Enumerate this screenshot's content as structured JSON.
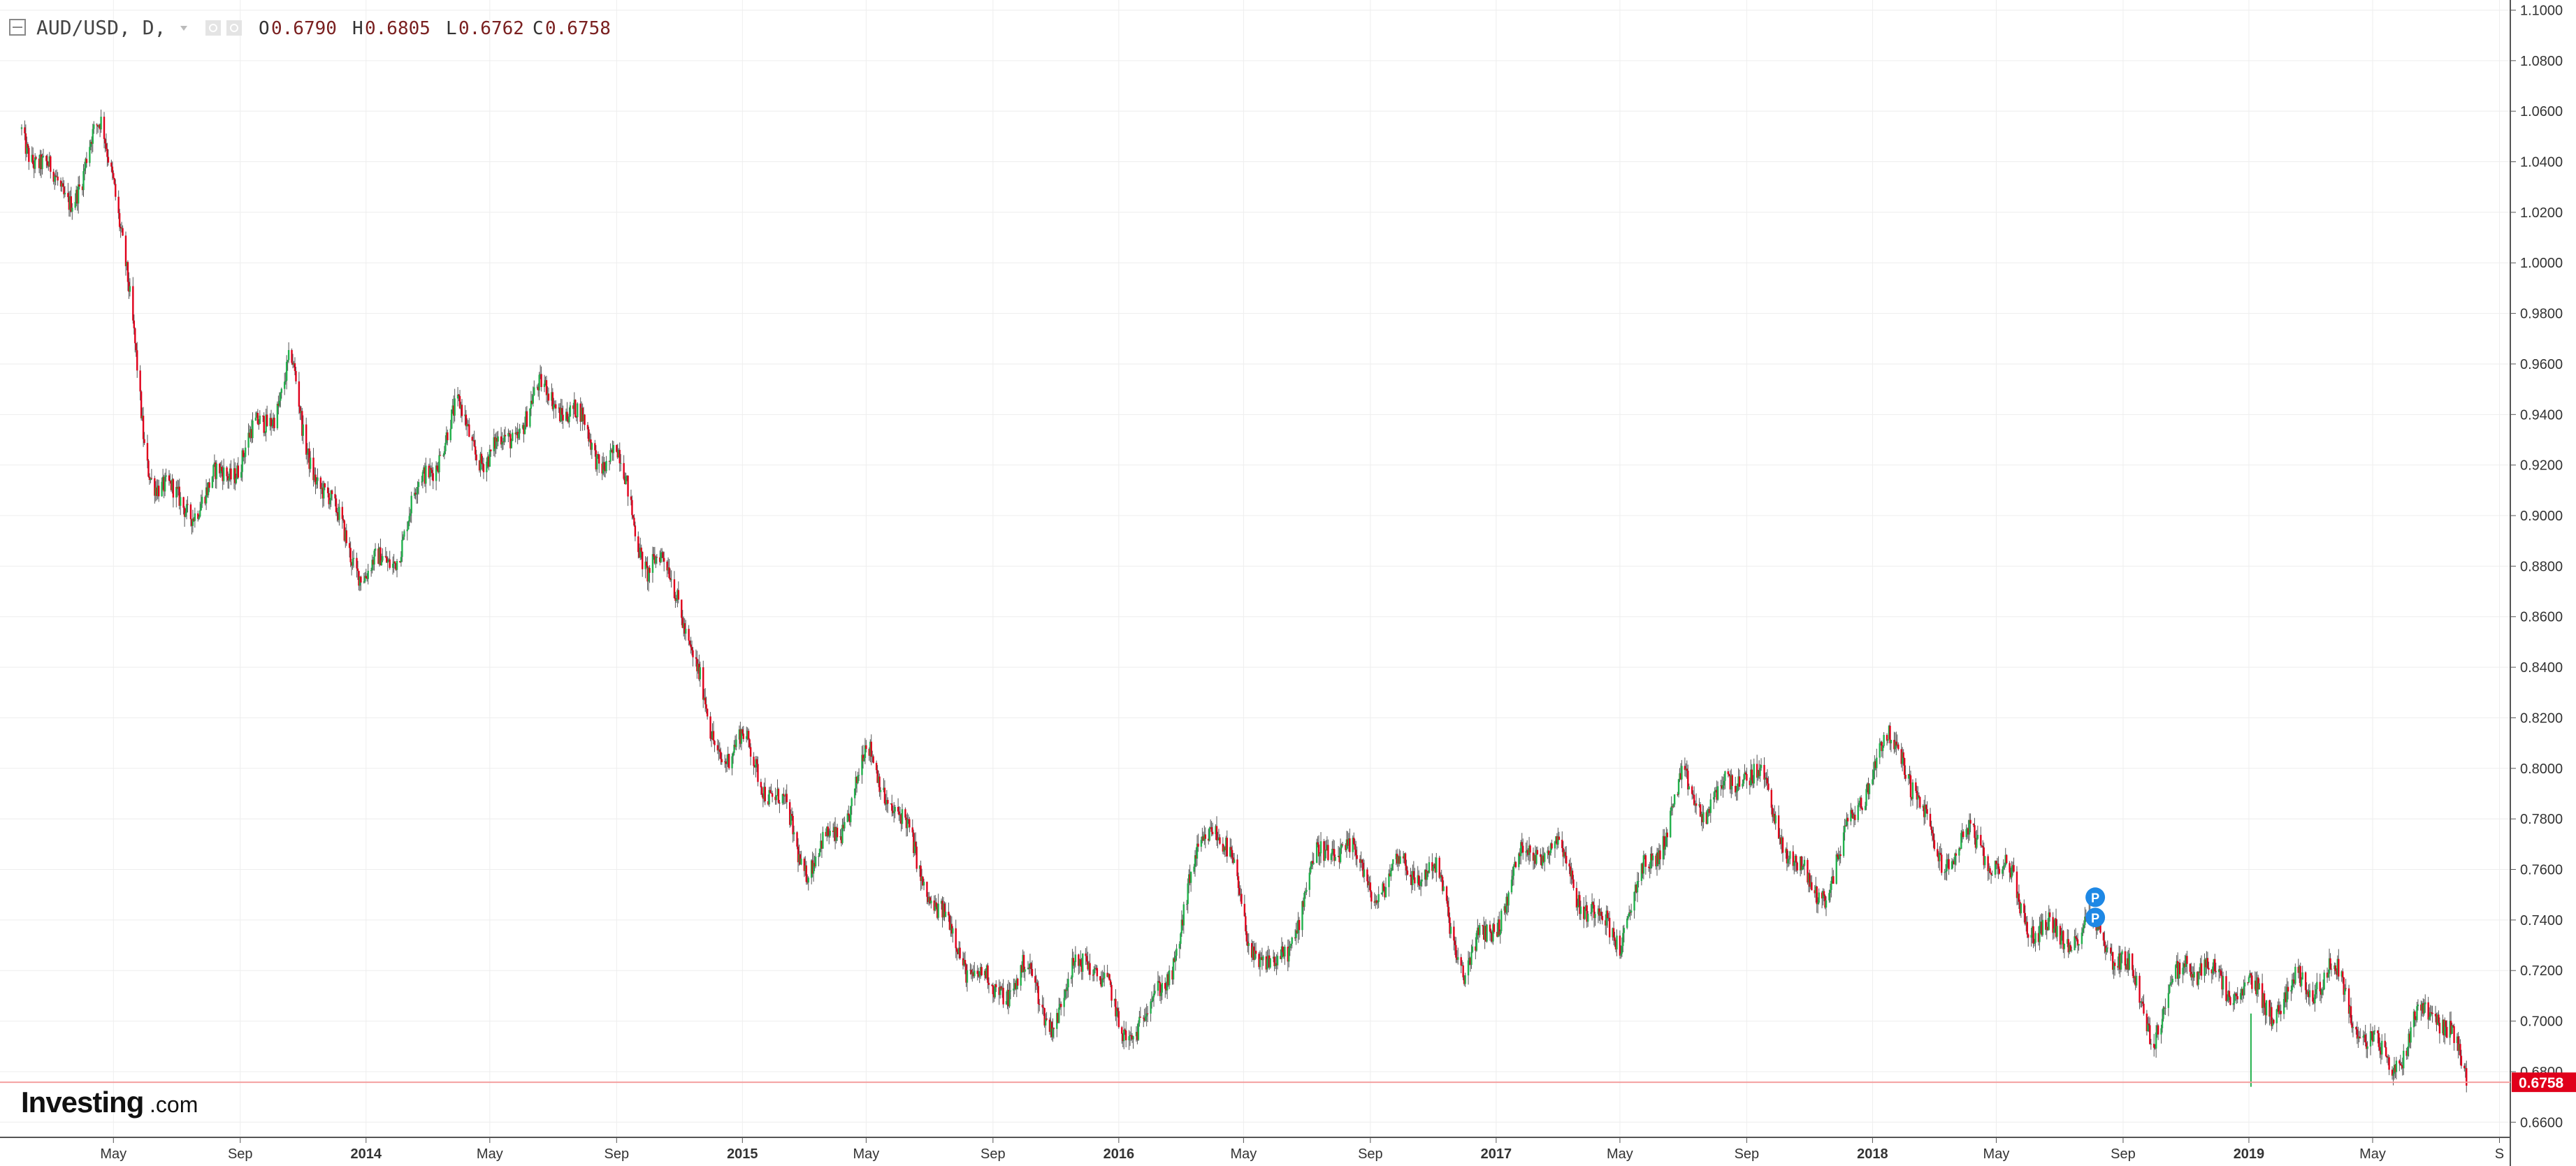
{
  "header": {
    "symbol": "AUD/USD, D,",
    "open_label": "O",
    "open": "0.6790",
    "high_label": "H",
    "high": "0.6805",
    "low_label": "L",
    "low": "0.6762",
    "close_label": "C",
    "close": "0.6758"
  },
  "brand": {
    "name": "Investing",
    "suffix": ".com"
  },
  "colors": {
    "up": "#22b14c",
    "down": "#e0001b",
    "grid": "#eeeeee",
    "price_line": "#e0001b",
    "marker": "#1e88e5"
  },
  "chart_data": {
    "type": "candlestick",
    "title": "AUD/USD, D,",
    "xlabel": "",
    "ylabel": "",
    "ylim": [
      0.654,
      1.104
    ],
    "y_ticks": [
      "1.1000",
      "1.0800",
      "1.0600",
      "1.0400",
      "1.0200",
      "1.0000",
      "0.9800",
      "0.9600",
      "0.9400",
      "0.9200",
      "0.9000",
      "0.8800",
      "0.8600",
      "0.8400",
      "0.8200",
      "0.8000",
      "0.7800",
      "0.7600",
      "0.7400",
      "0.7200",
      "0.7000",
      "0.6800",
      "0.6600"
    ],
    "x_ticks": [
      {
        "label": "May",
        "date": "2013-05",
        "bold": false
      },
      {
        "label": "Sep",
        "date": "2013-09",
        "bold": false
      },
      {
        "label": "2014",
        "date": "2014-01",
        "bold": true
      },
      {
        "label": "May",
        "date": "2014-05",
        "bold": false
      },
      {
        "label": "Sep",
        "date": "2014-09",
        "bold": false
      },
      {
        "label": "2015",
        "date": "2015-01",
        "bold": true
      },
      {
        "label": "May",
        "date": "2015-05",
        "bold": false
      },
      {
        "label": "Sep",
        "date": "2015-09",
        "bold": false
      },
      {
        "label": "2016",
        "date": "2016-01",
        "bold": true
      },
      {
        "label": "May",
        "date": "2016-05",
        "bold": false
      },
      {
        "label": "Sep",
        "date": "2016-09",
        "bold": false
      },
      {
        "label": "2017",
        "date": "2017-01",
        "bold": true
      },
      {
        "label": "May",
        "date": "2017-05",
        "bold": false
      },
      {
        "label": "Sep",
        "date": "2017-09",
        "bold": false
      },
      {
        "label": "2018",
        "date": "2018-01",
        "bold": true
      },
      {
        "label": "May",
        "date": "2018-05",
        "bold": false
      },
      {
        "label": "Sep",
        "date": "2018-09",
        "bold": false
      },
      {
        "label": "2019",
        "date": "2019-01",
        "bold": true
      },
      {
        "label": "May",
        "date": "2019-05",
        "bold": false
      },
      {
        "label": "S",
        "date": "2019-09",
        "bold": false
      }
    ],
    "x_range": [
      "2013-02",
      "2019-08"
    ],
    "last_price": "0.6758",
    "grid": true,
    "legend": "none",
    "trend_points": [
      {
        "date": "2013-02",
        "close": 1.053
      },
      {
        "date": "2013-03",
        "close": 1.04
      },
      {
        "date": "2013-04",
        "close": 1.03
      },
      {
        "date": "2013-04-20",
        "close": 1.05
      },
      {
        "date": "2013-05",
        "close": 1.03
      },
      {
        "date": "2013-06",
        "close": 0.93
      },
      {
        "date": "2013-07",
        "close": 0.91
      },
      {
        "date": "2013-08",
        "close": 0.9
      },
      {
        "date": "2013-09",
        "close": 0.92
      },
      {
        "date": "2013-10",
        "close": 0.95
      },
      {
        "date": "2013-10-20",
        "close": 0.965
      },
      {
        "date": "2013-11",
        "close": 0.93
      },
      {
        "date": "2013-12",
        "close": 0.89
      },
      {
        "date": "2014-01",
        "close": 0.88
      },
      {
        "date": "2014-02",
        "close": 0.895
      },
      {
        "date": "2014-03",
        "close": 0.91
      },
      {
        "date": "2014-04",
        "close": 0.935
      },
      {
        "date": "2014-05",
        "close": 0.93
      },
      {
        "date": "2014-06",
        "close": 0.94
      },
      {
        "date": "2014-07",
        "close": 0.94
      },
      {
        "date": "2014-08",
        "close": 0.935
      },
      {
        "date": "2014-09",
        "close": 0.93
      },
      {
        "date": "2014-10",
        "close": 0.875
      },
      {
        "date": "2014-11",
        "close": 0.865
      },
      {
        "date": "2014-12",
        "close": 0.82
      },
      {
        "date": "2015-01",
        "close": 0.81
      },
      {
        "date": "2015-02",
        "close": 0.78
      },
      {
        "date": "2015-03",
        "close": 0.765
      },
      {
        "date": "2015-04",
        "close": 0.78
      },
      {
        "date": "2015-05",
        "close": 0.8
      },
      {
        "date": "2015-06",
        "close": 0.775
      },
      {
        "date": "2015-07",
        "close": 0.76
      },
      {
        "date": "2015-08",
        "close": 0.73
      },
      {
        "date": "2015-09",
        "close": 0.7
      },
      {
        "date": "2015-10",
        "close": 0.72
      },
      {
        "date": "2015-11",
        "close": 0.71
      },
      {
        "date": "2015-12",
        "close": 0.725
      },
      {
        "date": "2016-01",
        "close": 0.69
      },
      {
        "date": "2016-02",
        "close": 0.71
      },
      {
        "date": "2016-03",
        "close": 0.74
      },
      {
        "date": "2016-04",
        "close": 0.775
      },
      {
        "date": "2016-05",
        "close": 0.74
      },
      {
        "date": "2016-06",
        "close": 0.725
      },
      {
        "date": "2016-07",
        "close": 0.75
      },
      {
        "date": "2016-08",
        "close": 0.765
      },
      {
        "date": "2016-09",
        "close": 0.76
      },
      {
        "date": "2016-10",
        "close": 0.765
      },
      {
        "date": "2016-11",
        "close": 0.75
      },
      {
        "date": "2016-12",
        "close": 0.72
      },
      {
        "date": "2017-01",
        "close": 0.75
      },
      {
        "date": "2017-02",
        "close": 0.765
      },
      {
        "date": "2017-03",
        "close": 0.76
      },
      {
        "date": "2017-04",
        "close": 0.75
      },
      {
        "date": "2017-05",
        "close": 0.74
      },
      {
        "date": "2017-06",
        "close": 0.755
      },
      {
        "date": "2017-07",
        "close": 0.79
      },
      {
        "date": "2017-08",
        "close": 0.795
      },
      {
        "date": "2017-09",
        "close": 0.8
      },
      {
        "date": "2017-10",
        "close": 0.77
      },
      {
        "date": "2017-11",
        "close": 0.755
      },
      {
        "date": "2017-12",
        "close": 0.77
      },
      {
        "date": "2018-01",
        "close": 0.795
      },
      {
        "date": "2018-02",
        "close": 0.805
      },
      {
        "date": "2018-03",
        "close": 0.775
      },
      {
        "date": "2018-04",
        "close": 0.77
      },
      {
        "date": "2018-05",
        "close": 0.755
      },
      {
        "date": "2018-06",
        "close": 0.745
      },
      {
        "date": "2018-07",
        "close": 0.74
      },
      {
        "date": "2018-08",
        "close": 0.73
      },
      {
        "date": "2018-09",
        "close": 0.72
      },
      {
        "date": "2018-10",
        "close": 0.705
      },
      {
        "date": "2018-11",
        "close": 0.725
      },
      {
        "date": "2018-12",
        "close": 0.705
      },
      {
        "date": "2019-01",
        "close": 0.715
      },
      {
        "date": "2019-02",
        "close": 0.715
      },
      {
        "date": "2019-03",
        "close": 0.71
      },
      {
        "date": "2019-04",
        "close": 0.71
      },
      {
        "date": "2019-05",
        "close": 0.695
      },
      {
        "date": "2019-06",
        "close": 0.69
      },
      {
        "date": "2019-07",
        "close": 0.7
      },
      {
        "date": "2019-08",
        "close": 0.6758
      }
    ],
    "position_markers": [
      {
        "label": "P",
        "date": "2018-08-05",
        "price": 0.749
      },
      {
        "label": "P",
        "date": "2018-08-05",
        "price": 0.741
      }
    ],
    "flash_wick": {
      "date": "2019-01-03",
      "low": 0.674
    }
  }
}
